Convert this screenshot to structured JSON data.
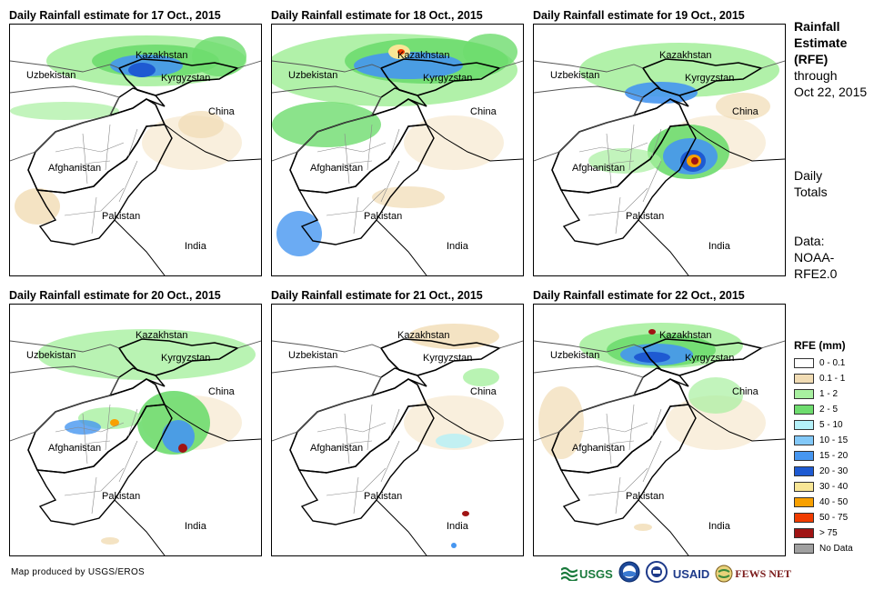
{
  "panels": [
    {
      "title": "Daily Rainfall estimate for 17 Oct., 2015"
    },
    {
      "title": "Daily Rainfall estimate for 18 Oct., 2015"
    },
    {
      "title": "Daily Rainfall estimate for 19 Oct., 2015"
    },
    {
      "title": "Daily Rainfall estimate for 20 Oct., 2015"
    },
    {
      "title": "Daily Rainfall estimate for 21 Oct., 2015"
    },
    {
      "title": "Daily Rainfall estimate for 22 Oct., 2015"
    }
  ],
  "map_labels": {
    "kazakhstan": "Kazakhstan",
    "uzbekistan": "Uzbekistan",
    "kyrgyzstan": "Kyrgyzstan",
    "china": "China",
    "afghanistan": "Afghanistan",
    "pakistan": "Pakistan",
    "india": "India"
  },
  "sidebar": {
    "title_line1": "Rainfall",
    "title_line2": "Estimate",
    "title_line3": "(RFE)",
    "through": "through",
    "date": "Oct 22, 2015",
    "daily": "Daily",
    "totals": "Totals",
    "data_label": "Data:",
    "data_source1": "NOAA-",
    "data_source2": "RFE2.0"
  },
  "legend": {
    "title": "RFE (mm)",
    "items": [
      {
        "label": "0 - 0.1",
        "color": "#ffffff"
      },
      {
        "label": "0.1 - 1",
        "color": "#f1dcb4"
      },
      {
        "label": "1 - 2",
        "color": "#a8f0a0"
      },
      {
        "label": "2 - 5",
        "color": "#6edc6e"
      },
      {
        "label": "5 - 10",
        "color": "#b4f0f8"
      },
      {
        "label": "10 - 15",
        "color": "#82c8f8"
      },
      {
        "label": "15 - 20",
        "color": "#4696f0"
      },
      {
        "label": "20 - 30",
        "color": "#1e5ad2"
      },
      {
        "label": "30 - 40",
        "color": "#f8e696"
      },
      {
        "label": "40 - 50",
        "color": "#f8a000"
      },
      {
        "label": "50 - 75",
        "color": "#f03c00"
      },
      {
        "label": "> 75",
        "color": "#a01414"
      },
      {
        "label": "No Data",
        "color": "#a0a0a0"
      }
    ]
  },
  "credit": "Map produced by USGS/EROS",
  "logos": {
    "usgs": "USGS",
    "usaid": "USAID",
    "fewsnet": "FEWS NET"
  }
}
